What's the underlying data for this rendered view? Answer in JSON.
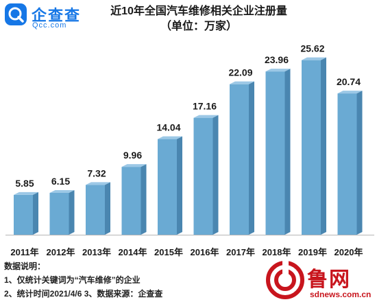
{
  "logo": {
    "name_cn": "企查查",
    "domain": "Qcc.com"
  },
  "title": {
    "line1": "近10年全国汽车维修相关企业注册量",
    "line2": "（单位：万家）"
  },
  "chart_data": {
    "type": "bar",
    "title": "近10年全国汽车维修相关企业注册量",
    "subtitle": "（单位：万家）",
    "categories": [
      "2011年",
      "2012年",
      "2013年",
      "2014年",
      "2015年",
      "2016年",
      "2017年",
      "2018年",
      "2019年",
      "2020年"
    ],
    "values": [
      5.85,
      6.15,
      7.32,
      9.96,
      14.04,
      17.16,
      22.09,
      23.96,
      25.62,
      20.74
    ],
    "value_labels": [
      "5.85",
      "6.15",
      "7.32",
      "9.96",
      "14.04",
      "17.16",
      "22.09",
      "23.96",
      "25.62",
      "20.74"
    ],
    "ylim": [
      0,
      28
    ],
    "grid": false,
    "bar_color": "#6aaad3",
    "bar_side_color": "#4a86b0",
    "bar_top_color": "#9cc8e6"
  },
  "notes": {
    "heading": "数据说明：",
    "line1": "1、仅统计关键词为“汽车维修”的企业",
    "line2": "2、统计时间2021/4/6   3、数据来源：企查查"
  },
  "brand": {
    "name_cn": "鲁网",
    "url": "sdnews.com.cn",
    "color": "#c8151d"
  },
  "colors": {
    "logo_blue": "#1677e6"
  }
}
